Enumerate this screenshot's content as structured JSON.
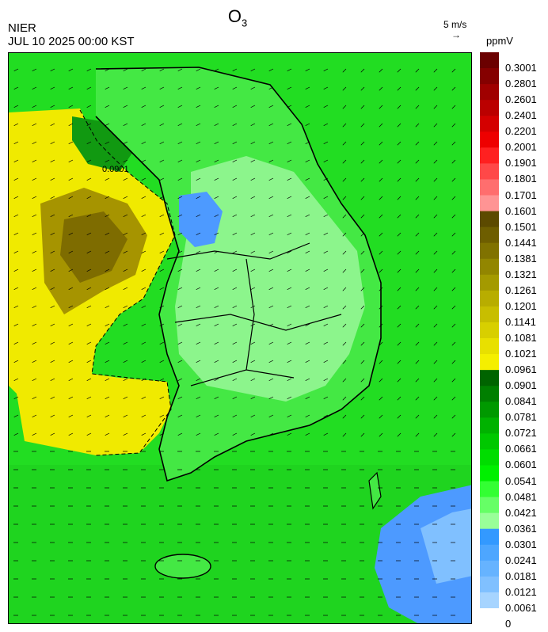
{
  "header": {
    "title_main": "O",
    "title_sub": "3",
    "agency": "NIER",
    "datetime": "JUL 10 2025 00:00 KST",
    "scale_label": "5 m/s",
    "scale_arrow": "→",
    "unit": "ppmV"
  },
  "colorbar": {
    "labels": [
      "0.3001",
      "0.2801",
      "0.2601",
      "0.2401",
      "0.2201",
      "0.2001",
      "0.1901",
      "0.1801",
      "0.1701",
      "0.1601",
      "0.1501",
      "0.1441",
      "0.1381",
      "0.1321",
      "0.1261",
      "0.1201",
      "0.1141",
      "0.1081",
      "0.1021",
      "0.0961",
      "0.0901",
      "0.0841",
      "0.0781",
      "0.0721",
      "0.0661",
      "0.0601",
      "0.0541",
      "0.0481",
      "0.0421",
      "0.0361",
      "0.0301",
      "0.0241",
      "0.0181",
      "0.0121",
      "0.0061",
      "0"
    ],
    "colors": [
      "#6b0000",
      "#850000",
      "#a00000",
      "#bb0000",
      "#d40000",
      "#ee0000",
      "#ff2020",
      "#ff4848",
      "#ff6e6e",
      "#ff9494",
      "#5c4a00",
      "#6e5e00",
      "#807200",
      "#928600",
      "#a49a00",
      "#b8ad00",
      "#c8be00",
      "#d8cf00",
      "#e8e000",
      "#f5ef00",
      "#006400",
      "#007f00",
      "#009900",
      "#00b200",
      "#00c800",
      "#00dd00",
      "#00f000",
      "#33ff33",
      "#66ff66",
      "#99ff99",
      "#3399ff",
      "#4da6ff",
      "#66b3ff",
      "#80c0ff",
      "#a6d4ff"
    ]
  },
  "map": {
    "contour_label": "0.0901",
    "field_colors": {
      "sea_green": "#22dd22",
      "land_light": "#8cf58c",
      "yellow": "#f0ea00",
      "olive": "#8c7a00",
      "dark_green": "#119911",
      "blue": "#4d9aff"
    }
  }
}
